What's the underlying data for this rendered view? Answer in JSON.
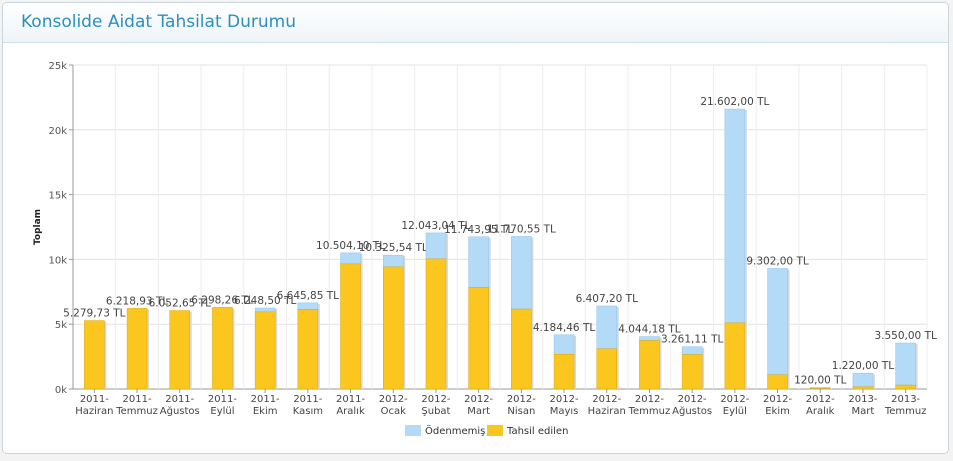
{
  "panel": {
    "title": "Konsolide Aidat Tahsilat Durumu"
  },
  "colors": {
    "odenmemis": "#b3dbf7",
    "tahsil": "#fbc71f",
    "tahsil_dark": "#d9a70e",
    "odenmemis_dark": "#8fc4ea"
  },
  "chart_data": {
    "type": "bar",
    "stacked": true,
    "title": "",
    "xlabel": "",
    "ylabel": "Toplam",
    "ylim": [
      0,
      25000
    ],
    "yticks": [
      "0k",
      "5k",
      "10k",
      "15k",
      "20k",
      "25k"
    ],
    "ytick_values": [
      0,
      5000,
      10000,
      15000,
      20000,
      25000
    ],
    "grid": true,
    "legend_position": "bottom",
    "categories": [
      [
        "2011-",
        "Haziran"
      ],
      [
        "2011-",
        "Temmuz"
      ],
      [
        "2011-",
        "Ağustos"
      ],
      [
        "2011-",
        "Eylül"
      ],
      [
        "2011-",
        "Ekim"
      ],
      [
        "2011-",
        "Kasım"
      ],
      [
        "2011-",
        "Aralık"
      ],
      [
        "2012-",
        "Ocak"
      ],
      [
        "2012-",
        "Şubat"
      ],
      [
        "2012-",
        "Mart"
      ],
      [
        "2012-",
        "Nisan"
      ],
      [
        "2012-",
        "Mayıs"
      ],
      [
        "2012-",
        "Haziran"
      ],
      [
        "2012-",
        "Temmuz"
      ],
      [
        "2012-",
        "Ağustos"
      ],
      [
        "2012-",
        "Eylül"
      ],
      [
        "2012-",
        "Ekim"
      ],
      [
        "2012-",
        "Aralık"
      ],
      [
        "2013-",
        "Mart"
      ],
      [
        "2013-",
        "Temmuz"
      ]
    ],
    "totals": [
      5279.73,
      6218.93,
      6052.65,
      6298.26,
      6248.5,
      6645.85,
      10504.1,
      10325.54,
      12043.04,
      11743.95,
      11770.55,
      4184.46,
      6407.2,
      4044.18,
      3261.11,
      21602.0,
      9302.0,
      120.0,
      1220.0,
      3550.0
    ],
    "total_labels": [
      "5.279,73 TL",
      "6.218,93 TL",
      "6.052,65 TL",
      "6.298,26 TL",
      "6.248,50 TL",
      "6.645,85 TL",
      "10.504,10 TL",
      "10.325,54 TL",
      "12.043,04 TL",
      "11.743,95 TL",
      "11.770,55 TL",
      "4.184,46 TL",
      "6.407,20 TL",
      "4.044,18 TL",
      "3.261,11 TL",
      "21.602,00 TL",
      "9.302,00 TL",
      "120,00 TL",
      "1.220,00 TL",
      "3.550,00 TL"
    ],
    "series": [
      {
        "name": "Ödenmemiş",
        "values": [
          0,
          0,
          0,
          0,
          300,
          500,
          850,
          900,
          2000,
          3900,
          5600,
          1500,
          3300,
          300,
          600,
          16500,
          8200,
          80,
          1050,
          3250
        ]
      },
      {
        "name": "Tahsil edilen",
        "values": [
          5279.73,
          6218.93,
          6052.65,
          6298.26,
          5948.5,
          6145.85,
          9654.1,
          9425.54,
          10043.04,
          7843.95,
          6170.55,
          2684.46,
          3107.2,
          3744.18,
          2661.11,
          5102.0,
          1102.0,
          40,
          170,
          300
        ]
      }
    ]
  }
}
